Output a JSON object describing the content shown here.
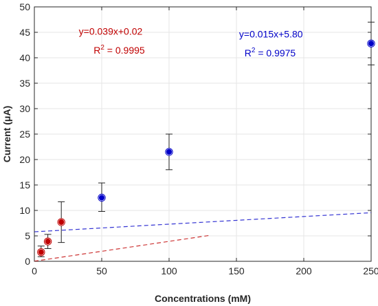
{
  "chart_data": {
    "type": "scatter",
    "xlabel": "Concentrations (mM)",
    "ylabel": "Current (μA)",
    "xlim": [
      0,
      250
    ],
    "ylim": [
      0,
      50
    ],
    "xticks": [
      0,
      50,
      100,
      150,
      200,
      250
    ],
    "yticks": [
      0,
      5,
      10,
      15,
      20,
      25,
      30,
      35,
      40,
      45,
      50
    ],
    "grid": true,
    "series": [
      {
        "color": "#c00000",
        "fit": {
          "slope": 0.039,
          "intercept": 0.02,
          "x_range": [
            0,
            130
          ]
        },
        "points": [
          {
            "x": 5,
            "y": 1.8,
            "err_low": 0.9,
            "err_high": 3.0
          },
          {
            "x": 10,
            "y": 3.9,
            "err_low": 2.5,
            "err_high": 5.3
          },
          {
            "x": 20,
            "y": 7.7,
            "err_low": 3.7,
            "err_high": 11.7
          }
        ]
      },
      {
        "color": "#0000c8",
        "fit": {
          "slope": 0.015,
          "intercept": 5.8,
          "x_range": [
            0,
            250
          ]
        },
        "points": [
          {
            "x": 50,
            "y": 12.5,
            "err_low": 9.8,
            "err_high": 15.4
          },
          {
            "x": 100,
            "y": 21.5,
            "err_low": 18.0,
            "err_high": 25.0
          },
          {
            "x": 250,
            "y": 42.8,
            "err_low": 38.6,
            "err_high": 47.0
          }
        ]
      }
    ],
    "annotations": [
      {
        "text": "y=0.039x+0.02",
        "color": "#c00000",
        "x": 33,
        "y": 44.5
      },
      {
        "text": "R",
        "sup": "2",
        "rest": " = 0.9995",
        "color": "#c00000",
        "x": 44,
        "y": 40.8
      },
      {
        "text": "y=0.015x+5.80",
        "color": "#0000c8",
        "x": 152,
        "y": 44.0
      },
      {
        "text": "R",
        "sup": "2",
        "rest": " = 0.9975",
        "color": "#0000c8",
        "x": 156,
        "y": 40.3
      }
    ]
  }
}
